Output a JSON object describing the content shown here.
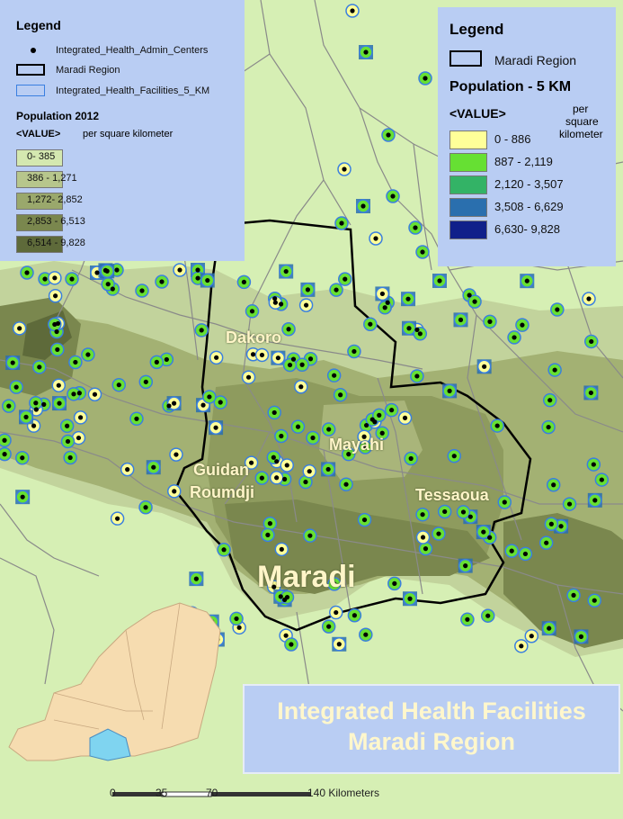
{
  "legend_left": {
    "title": "Legend",
    "items": [
      {
        "label": "Integrated_Health_Admin_Centers",
        "icon": "black-dot-icon"
      },
      {
        "label": "Maradi Region",
        "icon": "black-outline-box-icon"
      },
      {
        "label": "Integrated_Health_Facilities_5_KM",
        "icon": "blue-outline-box-icon"
      }
    ],
    "population_title": "Population 2012",
    "value_label": "<VALUE>",
    "unit_label": "per square kilometer",
    "classes": [
      {
        "label": "0- 385",
        "color": "#d4e8b0"
      },
      {
        "label": "386 - 1,271",
        "color": "#b7c68c"
      },
      {
        "label": "1,272- 2,852",
        "color": "#9aa86c"
      },
      {
        "label": "2,853 - 6,513",
        "color": "#7a874e"
      },
      {
        "label": "6,514 - 9,828",
        "color": "#5e6a3a"
      }
    ]
  },
  "legend_right": {
    "title": "Legend",
    "region_label": "Maradi Region",
    "population_title": "Population - 5 KM",
    "value_label": "<VALUE>",
    "unit_lines": [
      "per",
      "square",
      "kilometer"
    ],
    "classes": [
      {
        "label": "0 - 886",
        "color": "#ffff99"
      },
      {
        "label": "887 - 2,119",
        "color": "#66e033"
      },
      {
        "label": "2,120 - 3,507",
        "color": "#33b366"
      },
      {
        "label": "3,508 - 6,629",
        "color": "#2a6fae"
      },
      {
        "label": "6,630- 9,828",
        "color": "#10208a"
      }
    ]
  },
  "places": {
    "dakoro": "Dakoro",
    "mayahi": "Mayahi",
    "guidan_1": "Guidan",
    "guidan_2": "Roumdji",
    "tessaoua": "Tessaoua",
    "maradi": "Maradi"
  },
  "title": {
    "line1": "Integrated Health Facilities",
    "line2": "Maradi Region"
  },
  "scale_bar": {
    "ticks": [
      "0",
      "35",
      "70",
      "140 Kilometers"
    ]
  },
  "colors": {
    "background": "#d6efb4",
    "road": "#8a8a8a",
    "boundary": "#000000",
    "facility_ring": "#3a7fe0",
    "inset_country": "#f6dcb0",
    "inset_highlight": "#7fd4f0"
  }
}
